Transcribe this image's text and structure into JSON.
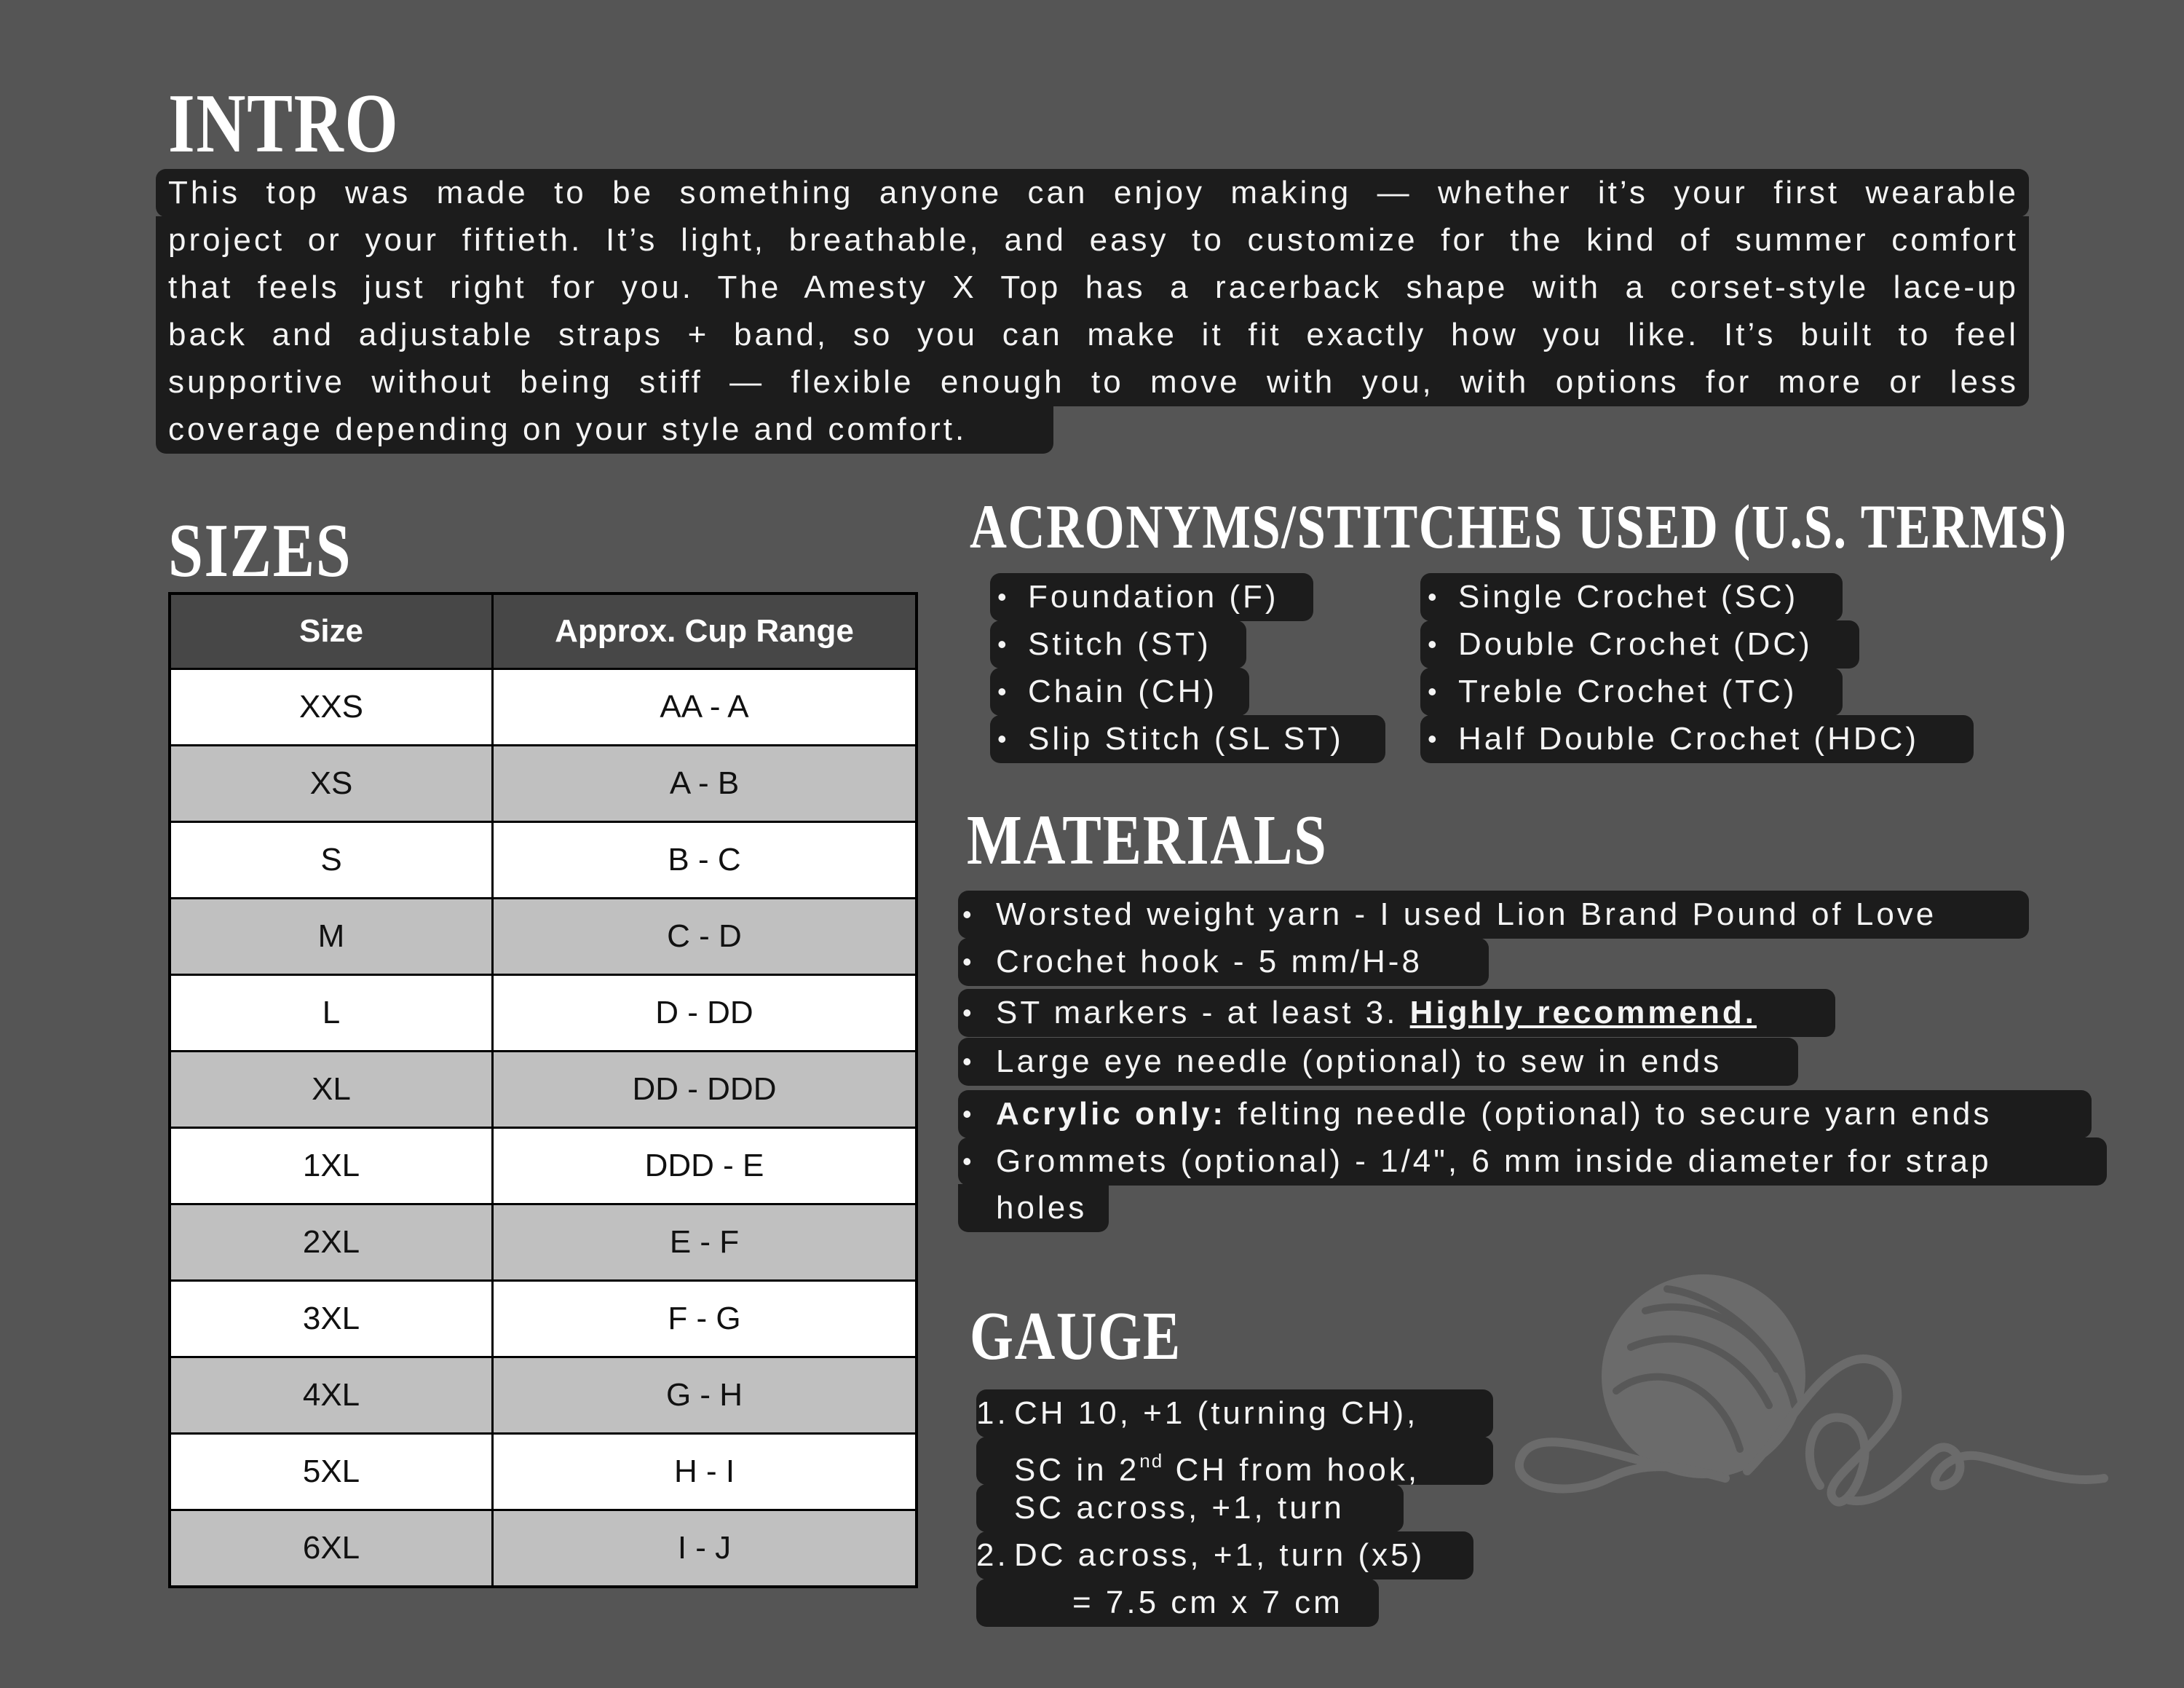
{
  "intro": {
    "title": "INTRO",
    "lines": [
      "This top was made to be something anyone can enjoy making — whether it’s your first wearable",
      "project or your fiftieth. It’s light, breathable, and easy to customize for the kind of summer comfort",
      "that feels just right for you. The Amesty X Top has a racerback shape with a corset-style lace-up",
      "back and adjustable straps + band, so you can make it fit exactly how you like. It’s built to feel",
      "supportive without being stiff — flexible enough to move with you, with options for more or less",
      "coverage depending on your style and comfort."
    ]
  },
  "sizes": {
    "title": "SIZES",
    "headers": [
      "Size",
      "Approx. Cup Range"
    ],
    "rows": [
      [
        "XXS",
        "AA - A"
      ],
      [
        "XS",
        "A - B"
      ],
      [
        "S",
        "B - C"
      ],
      [
        "M",
        "C - D"
      ],
      [
        "L",
        "D - DD"
      ],
      [
        "XL",
        "DD - DDD"
      ],
      [
        "1XL",
        "DDD - E"
      ],
      [
        "2XL",
        "E - F"
      ],
      [
        "3XL",
        "F - G"
      ],
      [
        "4XL",
        "G - H"
      ],
      [
        "5XL",
        "H - I"
      ],
      [
        "6XL",
        "I - J"
      ]
    ]
  },
  "acronyms": {
    "title": "ACRONYMS/STITCHES USED (U.S. TERMS)",
    "bullet": "•",
    "left": [
      "Foundation (F)",
      "Stitch (ST)",
      "Chain (CH)",
      "Slip Stitch (SL ST)"
    ],
    "right": [
      "Single Crochet (SC)",
      "Double Crochet (DC)",
      "Treble Crochet (TC)",
      "Half Double Crochet (HDC)"
    ]
  },
  "materials": {
    "title": "MATERIALS",
    "items": [
      {
        "text": "Worsted weight yarn - I used Lion Brand Pound of Love"
      },
      {
        "text": "Crochet hook - 5 mm/H-8"
      },
      {
        "text": "ST markers - at least 3. ",
        "bold_after": "Highly recommend."
      },
      {
        "text": "Large eye needle (optional) to sew in ends"
      },
      {
        "bold_before": "Acrylic only:",
        "text": " felting needle (optional) to secure yarn ends"
      },
      {
        "text": "Grommets (optional) - 1/4\", 6 mm inside diameter for strap",
        "cont": "holes"
      }
    ]
  },
  "gauge": {
    "title": "GAUGE",
    "steps": [
      {
        "num": "1.",
        "lines": [
          "CH 10, +1 (turning CH),",
          {
            "a": "SC in 2",
            "sup": "nd",
            "b": " CH from hook,"
          },
          "SC across, +1, turn"
        ]
      },
      {
        "num": "2.",
        "lines": [
          "DC across, +1, turn (x5)",
          "= 7.5 cm x 7 cm"
        ]
      }
    ]
  },
  "colors": {
    "background": "#555555",
    "highlight": "#1c1c1c",
    "table_header": "#474747",
    "row_alt": "#c0c0c0",
    "watermark": "#6b6b6b"
  },
  "icons": {
    "watermark": "yarn-ball-with-heart-icon"
  }
}
